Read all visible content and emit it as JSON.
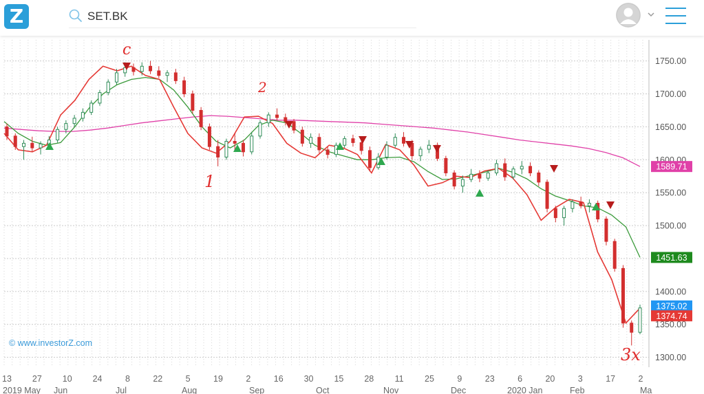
{
  "app": {
    "logo_text": "Z",
    "brand_color": "#2b9fd9"
  },
  "search": {
    "value": "SET.BK",
    "icon": "search-icon"
  },
  "user": {
    "avatar_icon": "user-avatar-icon",
    "menu_icon": "hamburger-menu-icon"
  },
  "chart_data": {
    "type": "candlestick",
    "ylim": [
      1285,
      1782
    ],
    "grid": true,
    "yticks": [
      "1300.00",
      "1350.00",
      "1400.00",
      "1450.00",
      "1500.00",
      "1550.00",
      "1600.00",
      "1650.00",
      "1700.00",
      "1750.00"
    ],
    "xticks_day": [
      "13",
      "27",
      "10",
      "24",
      "8",
      "22",
      "5",
      "19",
      "2",
      "16",
      "30",
      "15",
      "28",
      "11",
      "25",
      "9",
      "23",
      "6",
      "20",
      "3",
      "17",
      "2"
    ],
    "xticks_month": [
      "2019 May",
      "Jun",
      "Jul",
      "Aug",
      "Sep",
      "Oct",
      "Nov",
      "Dec",
      "2020 Jan",
      "Feb",
      "Ma"
    ],
    "series": [
      {
        "name": "MA200",
        "color": "#e040a8",
        "last_label": "1589.71",
        "values": [
          1648,
          1646,
          1644,
          1643,
          1643,
          1645,
          1648,
          1652,
          1656,
          1659,
          1662,
          1665,
          1667,
          1666,
          1664,
          1662,
          1660,
          1660,
          1659,
          1658,
          1657,
          1656,
          1654,
          1652,
          1650,
          1648,
          1645,
          1642,
          1638,
          1634,
          1630,
          1627,
          1624,
          1621,
          1617,
          1611,
          1603,
          1589.71
        ]
      },
      {
        "name": "MA50",
        "color": "#3a9a3a",
        "last_label": "1451.63",
        "values": [
          1658,
          1640,
          1628,
          1622,
          1626,
          1650,
          1678,
          1700,
          1714,
          1722,
          1725,
          1722,
          1706,
          1680,
          1650,
          1628,
          1618,
          1630,
          1652,
          1660,
          1656,
          1640,
          1622,
          1612,
          1606,
          1600,
          1600,
          1603,
          1604,
          1597,
          1582,
          1570,
          1571,
          1576,
          1581,
          1587,
          1581,
          1571,
          1556,
          1545,
          1538,
          1530,
          1527,
          1516,
          1498,
          1451.63
        ]
      },
      {
        "name": "Close",
        "color": "#e53935",
        "last_label": "1374.74",
        "values": [
          1640,
          1615,
          1612,
          1622,
          1668,
          1690,
          1722,
          1742,
          1735,
          1742,
          1728,
          1722,
          1680,
          1640,
          1618,
          1610,
          1628,
          1665,
          1666,
          1655,
          1625,
          1610,
          1603,
          1622,
          1618,
          1608,
          1580,
          1623,
          1615,
          1592,
          1560,
          1565,
          1575,
          1573,
          1583,
          1587,
          1572,
          1547,
          1508,
          1527,
          1540,
          1535,
          1460,
          1418,
          1352,
          1374.74
        ]
      }
    ],
    "last_price_label": {
      "value": "1375.02",
      "color": "#2196f3"
    },
    "candles": [
      [
        1650,
        1655,
        1630,
        1636
      ],
      [
        1636,
        1640,
        1615,
        1620
      ],
      [
        1620,
        1630,
        1600,
        1625
      ],
      [
        1625,
        1635,
        1612,
        1618
      ],
      [
        1618,
        1628,
        1608,
        1624
      ],
      [
        1624,
        1636,
        1618,
        1630
      ],
      [
        1630,
        1650,
        1626,
        1646
      ],
      [
        1646,
        1660,
        1640,
        1655
      ],
      [
        1655,
        1668,
        1650,
        1663
      ],
      [
        1663,
        1678,
        1658,
        1672
      ],
      [
        1672,
        1690,
        1668,
        1686
      ],
      [
        1686,
        1706,
        1682,
        1702
      ],
      [
        1702,
        1722,
        1698,
        1718
      ],
      [
        1718,
        1738,
        1714,
        1732
      ],
      [
        1732,
        1748,
        1726,
        1740
      ],
      [
        1740,
        1746,
        1728,
        1734
      ],
      [
        1734,
        1748,
        1728,
        1742
      ],
      [
        1742,
        1750,
        1730,
        1735
      ],
      [
        1735,
        1742,
        1724,
        1728
      ],
      [
        1728,
        1736,
        1718,
        1732
      ],
      [
        1732,
        1738,
        1715,
        1720
      ],
      [
        1720,
        1726,
        1695,
        1700
      ],
      [
        1700,
        1705,
        1670,
        1675
      ],
      [
        1675,
        1680,
        1645,
        1650
      ],
      [
        1650,
        1655,
        1615,
        1620
      ],
      [
        1620,
        1630,
        1590,
        1604
      ],
      [
        1604,
        1632,
        1600,
        1628
      ],
      [
        1628,
        1640,
        1615,
        1625
      ],
      [
        1625,
        1630,
        1605,
        1612
      ],
      [
        1612,
        1642,
        1608,
        1636
      ],
      [
        1636,
        1660,
        1632,
        1656
      ],
      [
        1656,
        1672,
        1650,
        1668
      ],
      [
        1668,
        1678,
        1660,
        1664
      ],
      [
        1664,
        1670,
        1652,
        1658
      ],
      [
        1658,
        1662,
        1640,
        1645
      ],
      [
        1645,
        1650,
        1620,
        1625
      ],
      [
        1625,
        1640,
        1618,
        1634
      ],
      [
        1634,
        1640,
        1610,
        1615
      ],
      [
        1615,
        1620,
        1602,
        1608
      ],
      [
        1608,
        1626,
        1604,
        1622
      ],
      [
        1622,
        1636,
        1618,
        1632
      ],
      [
        1632,
        1638,
        1620,
        1626
      ],
      [
        1626,
        1630,
        1608,
        1614
      ],
      [
        1614,
        1620,
        1582,
        1588
      ],
      [
        1588,
        1610,
        1585,
        1604
      ],
      [
        1604,
        1628,
        1600,
        1622
      ],
      [
        1622,
        1640,
        1618,
        1634
      ],
      [
        1634,
        1642,
        1620,
        1625
      ],
      [
        1625,
        1630,
        1600,
        1606
      ],
      [
        1606,
        1620,
        1598,
        1616
      ],
      [
        1616,
        1630,
        1610,
        1622
      ],
      [
        1622,
        1626,
        1598,
        1602
      ],
      [
        1602,
        1606,
        1575,
        1580
      ],
      [
        1580,
        1584,
        1555,
        1560
      ],
      [
        1560,
        1576,
        1550,
        1570
      ],
      [
        1570,
        1586,
        1566,
        1578
      ],
      [
        1578,
        1584,
        1566,
        1572
      ],
      [
        1572,
        1584,
        1568,
        1580
      ],
      [
        1580,
        1600,
        1576,
        1594
      ],
      [
        1594,
        1602,
        1568,
        1574
      ],
      [
        1574,
        1590,
        1570,
        1586
      ],
      [
        1586,
        1598,
        1578,
        1590
      ],
      [
        1590,
        1596,
        1575,
        1580
      ],
      [
        1580,
        1584,
        1560,
        1566
      ],
      [
        1566,
        1570,
        1520,
        1526
      ],
      [
        1526,
        1530,
        1505,
        1512
      ],
      [
        1512,
        1530,
        1500,
        1526
      ],
      [
        1526,
        1540,
        1520,
        1536
      ],
      [
        1536,
        1544,
        1526,
        1530
      ],
      [
        1530,
        1540,
        1520,
        1534
      ],
      [
        1534,
        1538,
        1505,
        1510
      ],
      [
        1510,
        1514,
        1470,
        1476
      ],
      [
        1476,
        1480,
        1430,
        1435
      ],
      [
        1435,
        1440,
        1345,
        1352
      ],
      [
        1352,
        1356,
        1318,
        1338
      ],
      [
        1338,
        1380,
        1335,
        1375
      ]
    ]
  },
  "watermark": "© www.investorZ.com",
  "annotations": [
    "c",
    "2",
    "1",
    "3x"
  ]
}
